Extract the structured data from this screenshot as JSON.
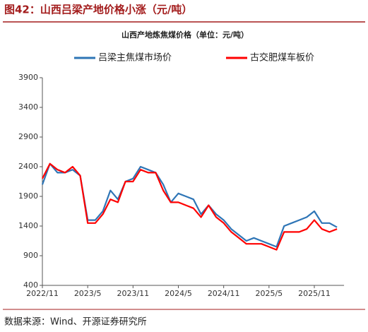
{
  "chart_data": {
    "type": "line",
    "title": "图42：山西吕梁产地价格小涨（元/吨）",
    "subtitle": "山西产地炼焦煤价格（单位：元/吨）",
    "source": "数据来源：Wind、开源证券研究所",
    "x": [
      "2022/11",
      "2022/12",
      "2023/1",
      "2023/2",
      "2023/3",
      "2023/4",
      "2023/5",
      "2023/6",
      "2023/7",
      "2023/8",
      "2023/9",
      "2023/10",
      "2023/11",
      "2023/12",
      "2024/1",
      "2024/2",
      "2024/3",
      "2024/4",
      "2024/5",
      "2024/6",
      "2024/7",
      "2024/8",
      "2024/9",
      "2024/10",
      "2024/11",
      "2024/12",
      "2025/1",
      "2025/2",
      "2025/3",
      "2025/4",
      "2025/5",
      "2025/6",
      "2025/7",
      "2025/8",
      "2025/9",
      "2025/10",
      "2025/11",
      "2025/12",
      "2026/1",
      "2026/2"
    ],
    "xticks": [
      "2022/11",
      "2023/5",
      "2023/11",
      "2024/5",
      "2024/11",
      "2025/5",
      "2025/11"
    ],
    "series": [
      {
        "name": "吕梁主焦煤市场价",
        "color": "#2e75b6",
        "values": [
          2100,
          2450,
          2300,
          2300,
          2350,
          2250,
          1500,
          1500,
          1650,
          2000,
          1850,
          2150,
          2200,
          2400,
          2350,
          2300,
          2100,
          1800,
          1950,
          1900,
          1850,
          1600,
          1750,
          1600,
          1500,
          1350,
          1250,
          1150,
          1200,
          1150,
          1100,
          1050,
          1400,
          1450,
          1500,
          1550,
          1650,
          1450,
          1450,
          1380
        ]
      },
      {
        "name": "古交肥煤车板价",
        "color": "#ff0000",
        "values": [
          2200,
          2450,
          2350,
          2300,
          2400,
          2250,
          1450,
          1450,
          1600,
          1850,
          1800,
          2150,
          2150,
          2350,
          2300,
          2300,
          2000,
          1800,
          1800,
          1750,
          1700,
          1550,
          1750,
          1550,
          1450,
          1300,
          1200,
          1100,
          1100,
          1100,
          1050,
          1000,
          1300,
          1300,
          1300,
          1350,
          1500,
          1350,
          1300,
          1350
        ]
      }
    ],
    "ylim": [
      400,
      3900
    ],
    "yticks": [
      400,
      900,
      1400,
      1900,
      2400,
      2900,
      3400,
      3900
    ]
  }
}
